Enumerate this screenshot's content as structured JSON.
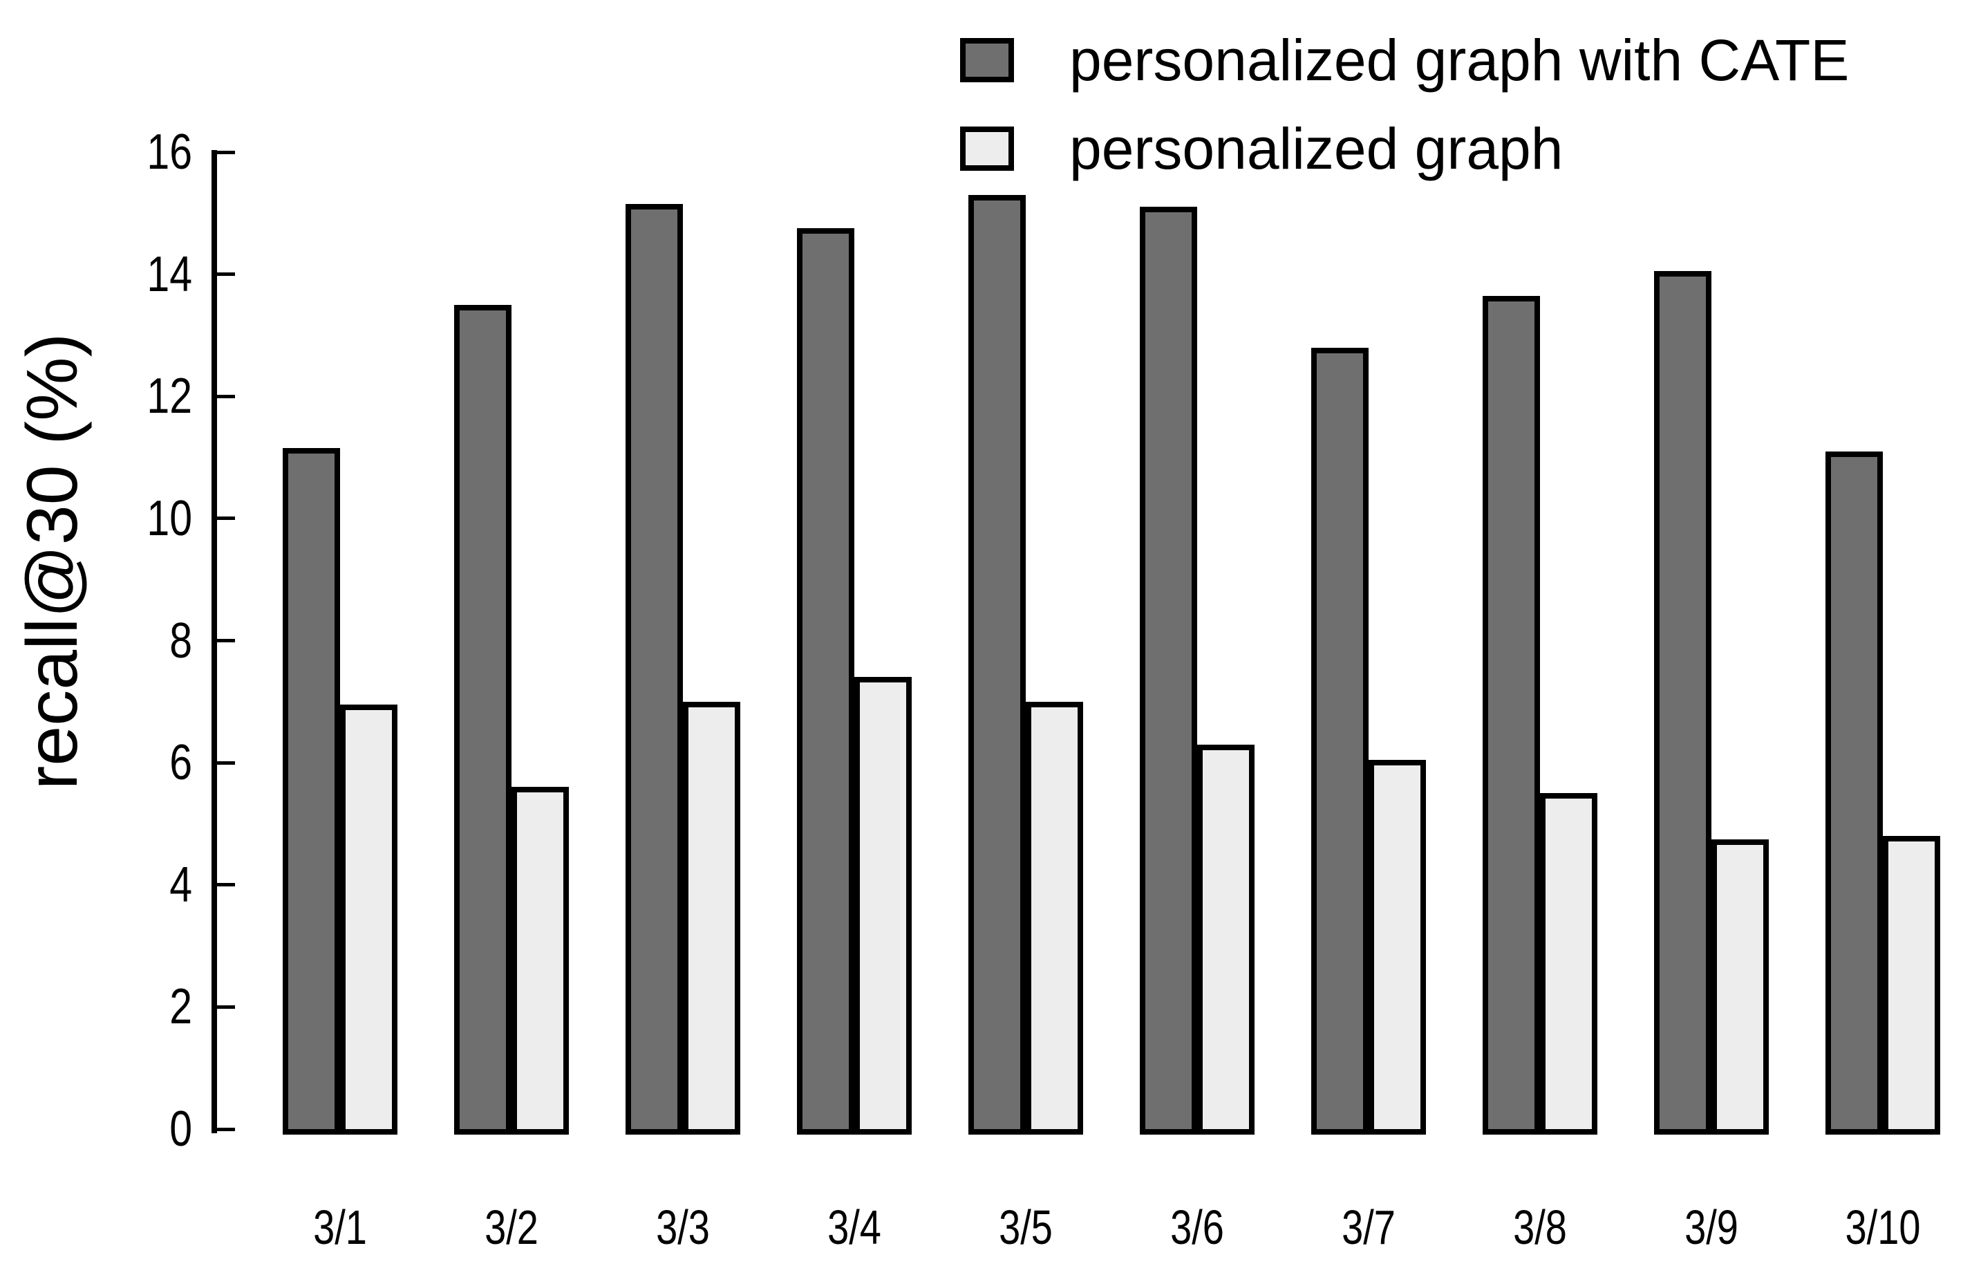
{
  "figure": {
    "background": "#ffffff",
    "frame_color": "#000000"
  },
  "legend": {
    "position": "top-right",
    "items": [
      {
        "label": "personalized graph with CATE",
        "color": "#6f6f6f",
        "swatch_border": "#000000"
      },
      {
        "label": "personalized graph",
        "color": "#ededed",
        "swatch_border": "#000000"
      }
    ]
  },
  "chart_data": {
    "type": "bar",
    "title": "",
    "xlabel": "",
    "ylabel": "recall@30 (%)",
    "categories": [
      "3/1",
      "3/2",
      "3/3",
      "3/4",
      "3/5",
      "3/6",
      "3/7",
      "3/8",
      "3/9",
      "3/10"
    ],
    "series": [
      {
        "name": "personalized graph with CATE",
        "color": "#6f6f6f",
        "outline": "#000000",
        "values": [
          11.15,
          13.5,
          15.15,
          14.75,
          15.3,
          15.1,
          12.8,
          13.65,
          14.05,
          11.1
        ]
      },
      {
        "name": "personalized graph",
        "color": "#ededed",
        "outline": "#000000",
        "values": [
          6.95,
          5.6,
          7.0,
          7.4,
          7.0,
          6.3,
          6.05,
          5.5,
          4.75,
          4.8
        ]
      }
    ],
    "ylim": [
      0,
      16
    ],
    "yticks": [
      0,
      2,
      4,
      6,
      8,
      10,
      12,
      14,
      16
    ],
    "tick_direction": "in",
    "grid": false,
    "legend_position": "top-right",
    "bar_group_gap": "one bar width between groups, bars in group touching"
  }
}
